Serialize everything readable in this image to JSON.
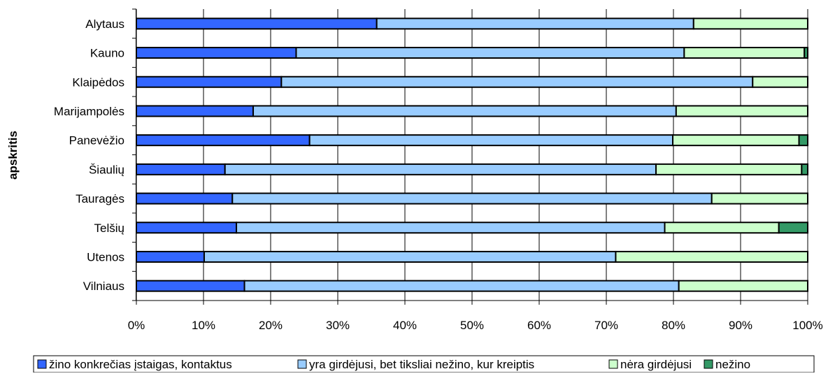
{
  "chart_data": {
    "type": "bar",
    "orientation": "horizontal",
    "stacked": "percent",
    "ylabel": "apskritis",
    "xlabel": "",
    "xlim": [
      0,
      100
    ],
    "x_ticks": [
      "0%",
      "10%",
      "20%",
      "30%",
      "40%",
      "50%",
      "60%",
      "70%",
      "80%",
      "90%",
      "100%"
    ],
    "grid": "vertical",
    "legend_position": "bottom",
    "categories": [
      "Alytaus",
      "Kauno",
      "Klaipėdos",
      "Marijampolės",
      "Panevėžio",
      "Šiaulių",
      "Tauragės",
      "Telšių",
      "Utenos",
      "Vilniaus"
    ],
    "series": [
      {
        "name": "žino konkrečias įstaigas, kontaktus",
        "color": "#3366FF",
        "values": [
          35.8,
          23.8,
          21.6,
          17.4,
          25.8,
          13.2,
          14.3,
          14.9,
          10.1,
          16.1
        ]
      },
      {
        "name": "yra girdėjusi, bet tiksliai nežino, kur kreiptis",
        "color": "#99CCFF",
        "values": [
          47.2,
          57.8,
          70.2,
          63.0,
          54.1,
          64.2,
          71.4,
          63.8,
          61.3,
          64.7
        ]
      },
      {
        "name": "nėra girdėjusi",
        "color": "#CCFFCC",
        "values": [
          17.0,
          17.9,
          8.2,
          19.6,
          18.8,
          21.7,
          14.3,
          17.0,
          28.6,
          19.2
        ]
      },
      {
        "name": "nežino",
        "color": "#339966",
        "values": [
          0,
          0.5,
          0,
          0,
          1.3,
          0.9,
          0,
          4.3,
          0,
          0
        ]
      }
    ]
  }
}
